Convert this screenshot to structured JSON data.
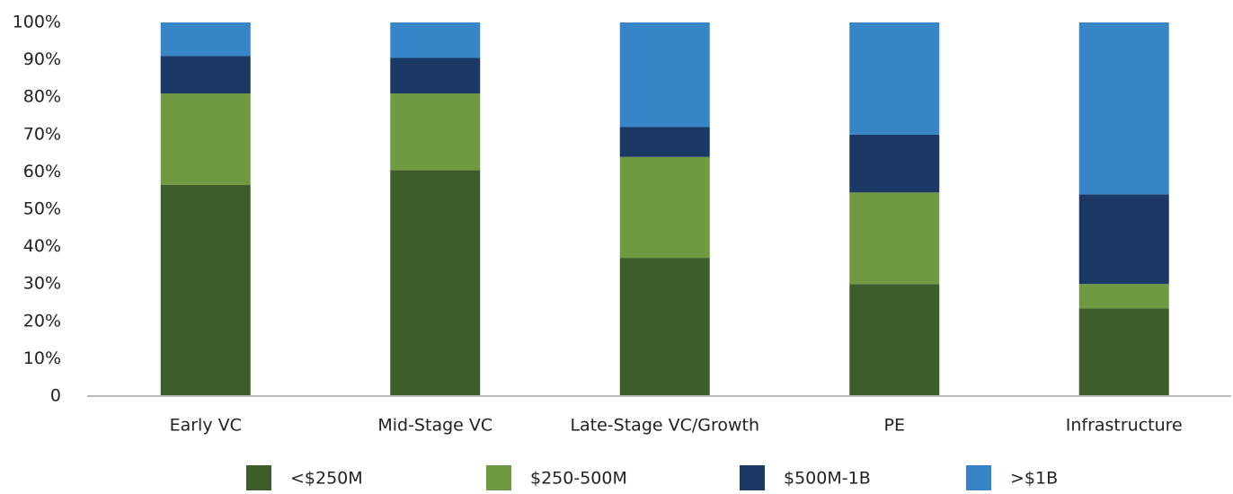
{
  "chart_data": {
    "type": "stacked_bar",
    "categories": [
      "Early VC",
      "Mid-Stage VC",
      "Late-Stage VC/Growth",
      "PE",
      "Infrastructure"
    ],
    "series": [
      {
        "name": "<$250M",
        "color": "#3d5e2b",
        "values": [
          56.5,
          60.5,
          37,
          30,
          23.5
        ]
      },
      {
        "name": "$250-500M",
        "color": "#6f9a41",
        "values": [
          24.5,
          20.5,
          27,
          24.5,
          6.5
        ]
      },
      {
        "name": "$500M-1B",
        "color": "#1c3864",
        "values": [
          10,
          9.5,
          8,
          15.5,
          24
        ]
      },
      {
        "name": ">$1B",
        "color": "#3686c7",
        "values": [
          9,
          9.5,
          28,
          30,
          46
        ]
      }
    ],
    "ylim": [
      0,
      100
    ],
    "yticks": [
      0,
      {
        "value": 10,
        "label": "10%"
      },
      {
        "value": 20,
        "label": "20%"
      },
      {
        "value": 30,
        "label": "30%"
      },
      {
        "value": 40,
        "label": "40%"
      },
      {
        "value": 50,
        "label": "50%"
      },
      {
        "value": 60,
        "label": "60%"
      },
      {
        "value": 70,
        "label": "70%"
      },
      {
        "value": 80,
        "label": "80%"
      },
      {
        "value": 90,
        "label": "90%"
      },
      {
        "value": 100,
        "label": "100%"
      }
    ],
    "grid": false,
    "legend": "bottom"
  }
}
